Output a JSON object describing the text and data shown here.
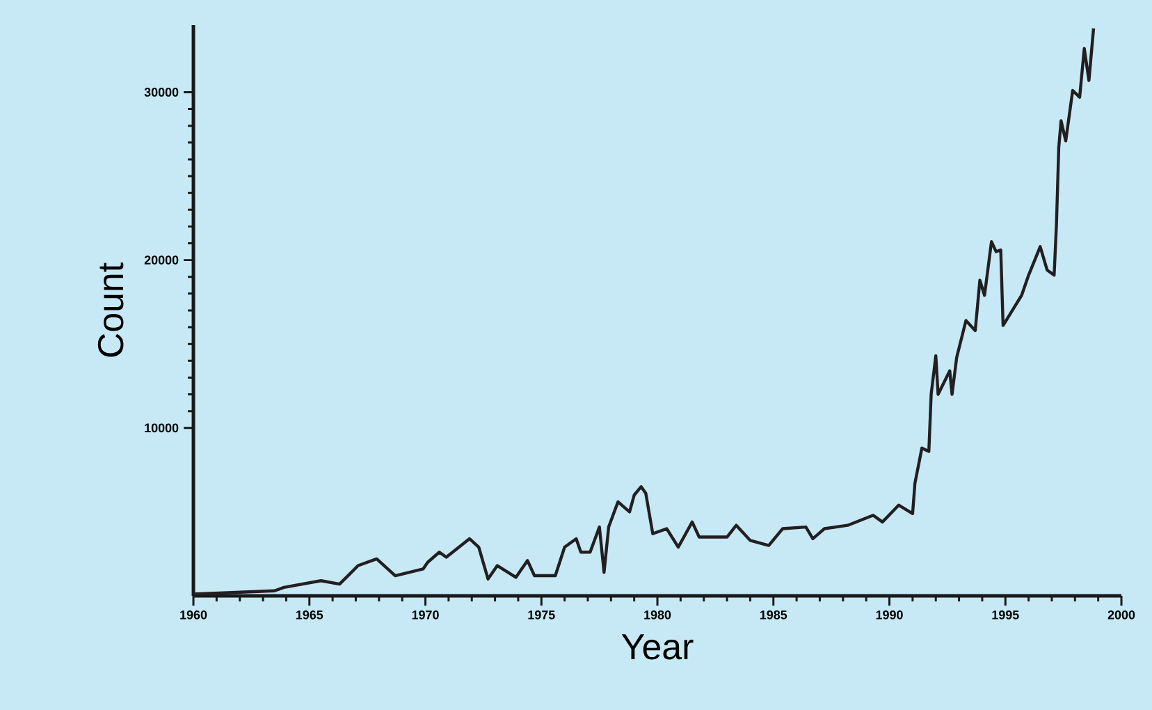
{
  "chart_data": {
    "type": "line",
    "xlabel": "Year",
    "ylabel": "Count",
    "xlim": [
      1960,
      2000
    ],
    "xticks": [
      1960,
      1965,
      1970,
      1975,
      1980,
      1985,
      1990,
      1995,
      2000
    ],
    "ylim": [
      0,
      34000
    ],
    "yticks": [
      10000,
      20000,
      30000
    ],
    "grid": false,
    "marker": "none",
    "line_style": "solid",
    "series": [
      {
        "color": "#231f20",
        "x": [
          1960.0,
          1963.5,
          1963.9,
          1965.5,
          1966.3,
          1967.1,
          1967.9,
          1968.7,
          1969.9,
          1970.1,
          1970.6,
          1970.9,
          1971.9,
          1972.3,
          1972.7,
          1973.1,
          1973.9,
          1974.4,
          1974.7,
          1975.6,
          1976.0,
          1976.5,
          1976.7,
          1977.1,
          1977.5,
          1977.7,
          1977.9,
          1978.3,
          1978.8,
          1979.0,
          1979.3,
          1979.5,
          1979.8,
          1980.4,
          1980.9,
          1981.5,
          1981.8,
          1983.0,
          1983.4,
          1984.0,
          1984.8,
          1985.4,
          1986.4,
          1986.7,
          1987.2,
          1988.2,
          1989.3,
          1989.7,
          1990.4,
          1991.0,
          1991.1,
          1991.4,
          1991.7,
          1991.8,
          1992.0,
          1992.1,
          1992.6,
          1992.7,
          1992.9,
          1993.3,
          1993.7,
          1993.9,
          1994.1,
          1994.4,
          1994.6,
          1994.8,
          1994.9,
          1995.3,
          1995.7,
          1996.0,
          1996.5,
          1996.8,
          1997.1,
          1997.2,
          1997.3,
          1997.4,
          1997.6,
          1997.9,
          1998.2,
          1998.4,
          1998.6,
          1998.8
        ],
        "values": [
          100,
          300,
          500,
          900,
          700,
          1800,
          2200,
          1200,
          1600,
          2000,
          2600,
          2300,
          3400,
          2900,
          1000,
          1800,
          1100,
          2100,
          1200,
          1200,
          2900,
          3400,
          2600,
          2600,
          4100,
          1400,
          4100,
          5600,
          5000,
          6000,
          6500,
          6100,
          3700,
          4000,
          2900,
          4400,
          3500,
          3500,
          4200,
          3300,
          3000,
          4000,
          4100,
          3400,
          4000,
          4200,
          4800,
          4400,
          5400,
          4900,
          6700,
          8800,
          8600,
          12000,
          14300,
          12000,
          13400,
          12000,
          14200,
          16400,
          15800,
          18800,
          17900,
          21100,
          20500,
          20600,
          16100,
          17000,
          17900,
          19100,
          20800,
          19400,
          19100,
          22100,
          26700,
          28300,
          27100,
          30100,
          29700,
          32600,
          30700,
          33800
        ]
      }
    ]
  }
}
